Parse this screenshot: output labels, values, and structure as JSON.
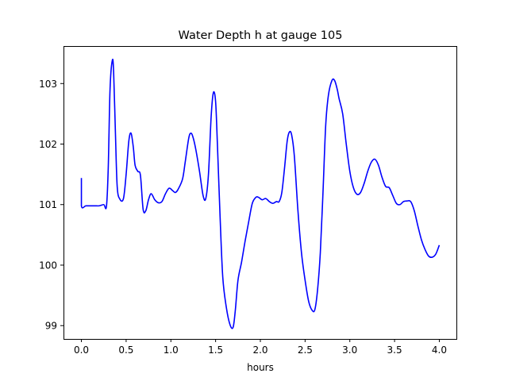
{
  "chart_data": {
    "type": "line",
    "title": "Water Depth h at gauge 105",
    "xlabel": "hours",
    "ylabel": "",
    "xlim": [
      -0.2,
      4.2
    ],
    "ylim": [
      98.78,
      103.62
    ],
    "xticks": [
      0.0,
      0.5,
      1.0,
      1.5,
      2.0,
      2.5,
      3.0,
      3.5,
      4.0
    ],
    "xtick_labels": [
      "0.0",
      "0.5",
      "1.0",
      "1.5",
      "2.0",
      "2.5",
      "3.0",
      "3.5",
      "4.0"
    ],
    "yticks": [
      99,
      100,
      101,
      102,
      103
    ],
    "ytick_labels": [
      "99",
      "100",
      "101",
      "102",
      "103"
    ],
    "grid": false,
    "legend": "none",
    "series": [
      {
        "color": "#0000ff",
        "points": [
          [
            0.0,
            101.44
          ],
          [
            0.0,
            100.98
          ],
          [
            0.05,
            100.98
          ],
          [
            0.1,
            100.98
          ],
          [
            0.15,
            100.98
          ],
          [
            0.2,
            100.98
          ],
          [
            0.25,
            101.0
          ],
          [
            0.28,
            100.97
          ],
          [
            0.3,
            101.6
          ],
          [
            0.32,
            102.9
          ],
          [
            0.345,
            103.38
          ],
          [
            0.36,
            103.2
          ],
          [
            0.38,
            102.2
          ],
          [
            0.4,
            101.3
          ],
          [
            0.43,
            101.09
          ],
          [
            0.47,
            101.1
          ],
          [
            0.5,
            101.5
          ],
          [
            0.53,
            102.05
          ],
          [
            0.555,
            102.18
          ],
          [
            0.58,
            101.95
          ],
          [
            0.6,
            101.65
          ],
          [
            0.63,
            101.55
          ],
          [
            0.66,
            101.48
          ],
          [
            0.69,
            100.92
          ],
          [
            0.72,
            100.9
          ],
          [
            0.75,
            101.08
          ],
          [
            0.78,
            101.18
          ],
          [
            0.82,
            101.08
          ],
          [
            0.86,
            101.03
          ],
          [
            0.9,
            101.05
          ],
          [
            0.94,
            101.18
          ],
          [
            0.98,
            101.27
          ],
          [
            1.02,
            101.23
          ],
          [
            1.05,
            101.2
          ],
          [
            1.08,
            101.25
          ],
          [
            1.13,
            101.42
          ],
          [
            1.16,
            101.7
          ],
          [
            1.2,
            102.1
          ],
          [
            1.225,
            102.18
          ],
          [
            1.25,
            102.1
          ],
          [
            1.28,
            101.9
          ],
          [
            1.32,
            101.55
          ],
          [
            1.36,
            101.15
          ],
          [
            1.39,
            101.1
          ],
          [
            1.42,
            101.5
          ],
          [
            1.45,
            102.45
          ],
          [
            1.475,
            102.85
          ],
          [
            1.5,
            102.7
          ],
          [
            1.52,
            102.0
          ],
          [
            1.55,
            100.8
          ],
          [
            1.58,
            99.8
          ],
          [
            1.62,
            99.3
          ],
          [
            1.66,
            99.02
          ],
          [
            1.695,
            98.97
          ],
          [
            1.72,
            99.25
          ],
          [
            1.75,
            99.75
          ],
          [
            1.79,
            100.05
          ],
          [
            1.83,
            100.4
          ],
          [
            1.87,
            100.72
          ],
          [
            1.91,
            101.02
          ],
          [
            1.95,
            101.12
          ],
          [
            1.98,
            101.12
          ],
          [
            2.02,
            101.08
          ],
          [
            2.06,
            101.1
          ],
          [
            2.1,
            101.05
          ],
          [
            2.14,
            101.02
          ],
          [
            2.18,
            101.05
          ],
          [
            2.21,
            101.05
          ],
          [
            2.24,
            101.2
          ],
          [
            2.27,
            101.6
          ],
          [
            2.3,
            102.05
          ],
          [
            2.325,
            102.2
          ],
          [
            2.35,
            102.15
          ],
          [
            2.38,
            101.8
          ],
          [
            2.42,
            100.9
          ],
          [
            2.46,
            100.2
          ],
          [
            2.5,
            99.75
          ],
          [
            2.54,
            99.4
          ],
          [
            2.58,
            99.25
          ],
          [
            2.61,
            99.27
          ],
          [
            2.64,
            99.6
          ],
          [
            2.67,
            100.2
          ],
          [
            2.7,
            101.2
          ],
          [
            2.73,
            102.3
          ],
          [
            2.76,
            102.8
          ],
          [
            2.8,
            103.05
          ],
          [
            2.83,
            103.05
          ],
          [
            2.86,
            102.9
          ],
          [
            2.88,
            102.75
          ],
          [
            2.92,
            102.5
          ],
          [
            2.96,
            102.0
          ],
          [
            3.0,
            101.55
          ],
          [
            3.04,
            101.28
          ],
          [
            3.08,
            101.17
          ],
          [
            3.12,
            101.2
          ],
          [
            3.16,
            101.35
          ],
          [
            3.2,
            101.55
          ],
          [
            3.24,
            101.7
          ],
          [
            3.28,
            101.75
          ],
          [
            3.32,
            101.65
          ],
          [
            3.36,
            101.45
          ],
          [
            3.4,
            101.3
          ],
          [
            3.44,
            101.28
          ],
          [
            3.48,
            101.15
          ],
          [
            3.52,
            101.02
          ],
          [
            3.56,
            101.0
          ],
          [
            3.6,
            101.05
          ],
          [
            3.64,
            101.06
          ],
          [
            3.68,
            101.05
          ],
          [
            3.72,
            100.9
          ],
          [
            3.76,
            100.65
          ],
          [
            3.8,
            100.42
          ],
          [
            3.84,
            100.26
          ],
          [
            3.88,
            100.15
          ],
          [
            3.92,
            100.13
          ],
          [
            3.96,
            100.18
          ],
          [
            4.0,
            100.33
          ]
        ]
      }
    ]
  }
}
